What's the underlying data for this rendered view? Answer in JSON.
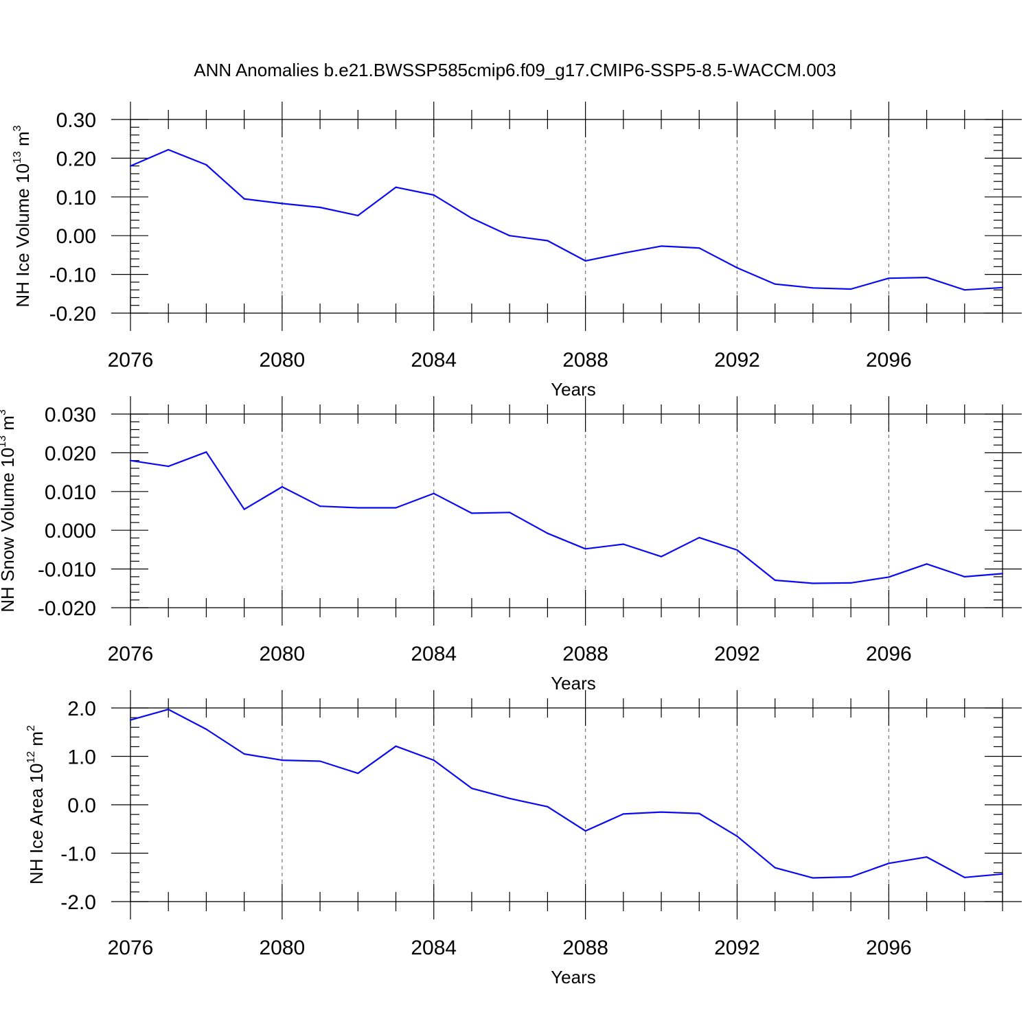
{
  "title": "ANN Anomalies b.e21.BWSSP585cmip6.f09_g17.CMIP6-SSP5-8.5-WACCM.003",
  "colors": {
    "line": "#0a0af0",
    "grid": "#777777",
    "axis": "#000000"
  },
  "chart_data": [
    {
      "type": "line",
      "ylabel": "NH Ice Volume",
      "ylabel_unit_base": "10",
      "ylabel_unit_exp": "13",
      "ylabel_unit_sym": "m",
      "ylabel_unit_pow": "3",
      "xlabel": "Years",
      "xlim": [
        2076,
        2099
      ],
      "ylim": [
        -0.2,
        0.3
      ],
      "x_ticks": [
        2076,
        2080,
        2084,
        2088,
        2092,
        2096
      ],
      "x_tick_labels": [
        "2076",
        "2080",
        "2084",
        "2088",
        "2092",
        "2096"
      ],
      "y_ticks": [
        -0.2,
        -0.1,
        0.0,
        0.1,
        0.2,
        0.3
      ],
      "y_tick_labels": [
        "-0.20",
        "-0.10",
        "0.00",
        "0.10",
        "0.20",
        "0.30"
      ],
      "grid": "x-dashed",
      "x": [
        2076,
        2077,
        2078,
        2079,
        2080,
        2081,
        2082,
        2083,
        2084,
        2085,
        2086,
        2087,
        2088,
        2089,
        2090,
        2091,
        2092,
        2093,
        2094,
        2095,
        2096,
        2097,
        2098,
        2099
      ],
      "values": [
        0.18,
        0.222,
        0.183,
        0.095,
        0.083,
        0.073,
        0.052,
        0.125,
        0.105,
        0.045,
        0.0,
        -0.013,
        -0.065,
        -0.045,
        -0.027,
        -0.032,
        -0.083,
        -0.125,
        -0.135,
        -0.138,
        -0.11,
        -0.108,
        -0.14,
        -0.134
      ]
    },
    {
      "type": "line",
      "ylabel": "NH Snow Volume",
      "ylabel_unit_base": "10",
      "ylabel_unit_exp": "13",
      "ylabel_unit_sym": "m",
      "ylabel_unit_pow": "3",
      "xlabel": "Years",
      "xlim": [
        2076,
        2099
      ],
      "ylim": [
        -0.02,
        0.03
      ],
      "x_ticks": [
        2076,
        2080,
        2084,
        2088,
        2092,
        2096
      ],
      "x_tick_labels": [
        "2076",
        "2080",
        "2084",
        "2088",
        "2092",
        "2096"
      ],
      "y_ticks": [
        -0.02,
        -0.01,
        0.0,
        0.01,
        0.02,
        0.03
      ],
      "y_tick_labels": [
        "-0.020",
        "-0.010",
        "0.000",
        "0.010",
        "0.020",
        "0.030"
      ],
      "grid": "x-dashed",
      "x": [
        2076,
        2077,
        2078,
        2079,
        2080,
        2081,
        2082,
        2083,
        2084,
        2085,
        2086,
        2087,
        2088,
        2089,
        2090,
        2091,
        2092,
        2093,
        2094,
        2095,
        2096,
        2097,
        2098,
        2099
      ],
      "values": [
        0.018,
        0.0165,
        0.0202,
        0.0054,
        0.0112,
        0.0062,
        0.0058,
        0.0058,
        0.0095,
        0.0044,
        0.0046,
        -0.0008,
        -0.0048,
        -0.0036,
        -0.0068,
        -0.0019,
        -0.0051,
        -0.0129,
        -0.0137,
        -0.0136,
        -0.0121,
        -0.0087,
        -0.012,
        -0.0112
      ]
    },
    {
      "type": "line",
      "ylabel": "NH Ice Area",
      "ylabel_unit_base": "10",
      "ylabel_unit_exp": "12",
      "ylabel_unit_sym": "m",
      "ylabel_unit_pow": "2",
      "xlabel": "Years",
      "xlim": [
        2076,
        2099
      ],
      "ylim": [
        -2.0,
        2.0
      ],
      "x_ticks": [
        2076,
        2080,
        2084,
        2088,
        2092,
        2096
      ],
      "x_tick_labels": [
        "2076",
        "2080",
        "2084",
        "2088",
        "2092",
        "2096"
      ],
      "y_ticks": [
        -2.0,
        -1.0,
        0.0,
        1.0,
        2.0
      ],
      "y_tick_labels": [
        "-2.0",
        "-1.0",
        "0.0",
        "1.0",
        "2.0"
      ],
      "grid": "x-dashed",
      "x": [
        2076,
        2077,
        2078,
        2079,
        2080,
        2081,
        2082,
        2083,
        2084,
        2085,
        2086,
        2087,
        2088,
        2089,
        2090,
        2091,
        2092,
        2093,
        2094,
        2095,
        2096,
        2097,
        2098,
        2099
      ],
      "values": [
        1.75,
        1.97,
        1.56,
        1.05,
        0.92,
        0.9,
        0.65,
        1.21,
        0.92,
        0.34,
        0.13,
        -0.04,
        -0.54,
        -0.19,
        -0.15,
        -0.18,
        -0.65,
        -1.3,
        -1.51,
        -1.49,
        -1.21,
        -1.08,
        -1.5,
        -1.43
      ]
    }
  ]
}
